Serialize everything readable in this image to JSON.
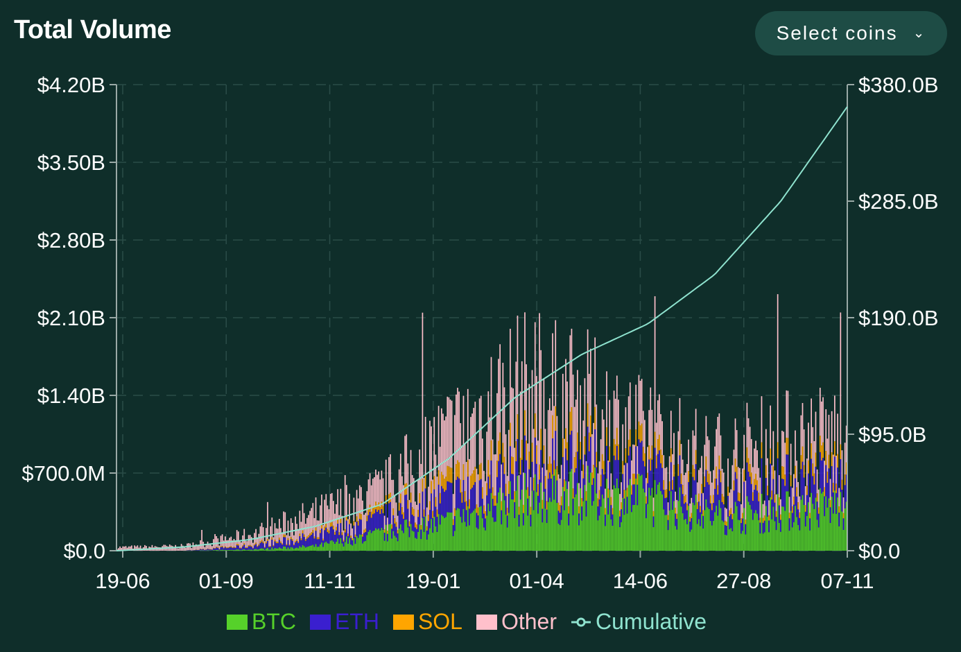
{
  "header": {
    "title": "Total Volume"
  },
  "select": {
    "label": "Select coins"
  },
  "colors": {
    "background": "#0f2e2a",
    "button_bg": "#1e4c45",
    "grid": "#2a4d48",
    "axis": "#9aa9a6",
    "btc": "#56d12a",
    "eth": "#3a1fcf",
    "sol": "#ffa500",
    "other": "#ffc0cb",
    "cumulative": "#8fe3cf"
  },
  "chart_data": {
    "type": "bar",
    "stacked": true,
    "x_ticks": [
      "19-06",
      "01-09",
      "11-11",
      "19-01",
      "01-04",
      "14-06",
      "27-08",
      "07-11"
    ],
    "y_left": {
      "ticks": [
        "$0.0",
        "$700.0M",
        "$1.40B",
        "$2.10B",
        "$2.80B",
        "$3.50B",
        "$4.20B"
      ],
      "range": [
        0,
        4200000000
      ]
    },
    "y_right": {
      "ticks": [
        "$0.0",
        "$95.0B",
        "$190.0B",
        "$285.0B",
        "$380.0B"
      ],
      "range": [
        0,
        380000000000
      ]
    },
    "grid": true,
    "legend_position": "bottom",
    "series": [
      {
        "name": "BTC",
        "key": "btc"
      },
      {
        "name": "ETH",
        "key": "eth"
      },
      {
        "name": "SOL",
        "key": "sol"
      },
      {
        "name": "Other",
        "key": "other"
      }
    ],
    "line_series": {
      "name": "Cumulative",
      "axis": "right"
    },
    "profile": [
      {
        "x": "19-06",
        "btc": 0.0,
        "eth": 0.0,
        "sol": 0.0,
        "other": 0.03,
        "cum": 0
      },
      {
        "x": "01-09",
        "btc": 0.0,
        "eth": 0.0,
        "sol": 0.0,
        "other": 0.04,
        "cum": 3
      },
      {
        "x": "11-11",
        "btc": 0.01,
        "eth": 0.03,
        "sol": 0.01,
        "other": 0.09,
        "cum": 9
      },
      {
        "x": "11-12",
        "btc": 0.04,
        "eth": 0.08,
        "sol": 0.02,
        "other": 0.18,
        "cum": 20
      },
      {
        "x": "19-01",
        "btc": 0.15,
        "eth": 0.12,
        "sol": 0.05,
        "other": 0.2,
        "cum": 38
      },
      {
        "x": "15-02",
        "btc": 0.25,
        "eth": 0.2,
        "sol": 0.1,
        "other": 0.45,
        "cum": 75
      },
      {
        "x": "10-03",
        "btc": 0.45,
        "eth": 0.22,
        "sol": 0.15,
        "other": 0.6,
        "cum": 125
      },
      {
        "x": "01-04",
        "btc": 0.5,
        "eth": 0.23,
        "sol": 0.14,
        "other": 0.45,
        "cum": 160
      },
      {
        "x": "25-04",
        "btc": 0.45,
        "eth": 0.2,
        "sol": 0.1,
        "other": 0.25,
        "cum": 185
      },
      {
        "x": "14-06",
        "btc": 0.3,
        "eth": 0.18,
        "sol": 0.08,
        "other": 0.25,
        "cum": 225
      },
      {
        "x": "27-08",
        "btc": 0.35,
        "eth": 0.22,
        "sol": 0.1,
        "other": 0.28,
        "cum": 285
      },
      {
        "x": "07-11",
        "btc": 0.4,
        "eth": 0.22,
        "sol": 0.1,
        "other": 0.3,
        "cum": 362
      }
    ]
  },
  "legend": {
    "btc": "BTC",
    "eth": "ETH",
    "sol": "SOL",
    "other": "Other",
    "cumulative": "Cumulative"
  }
}
